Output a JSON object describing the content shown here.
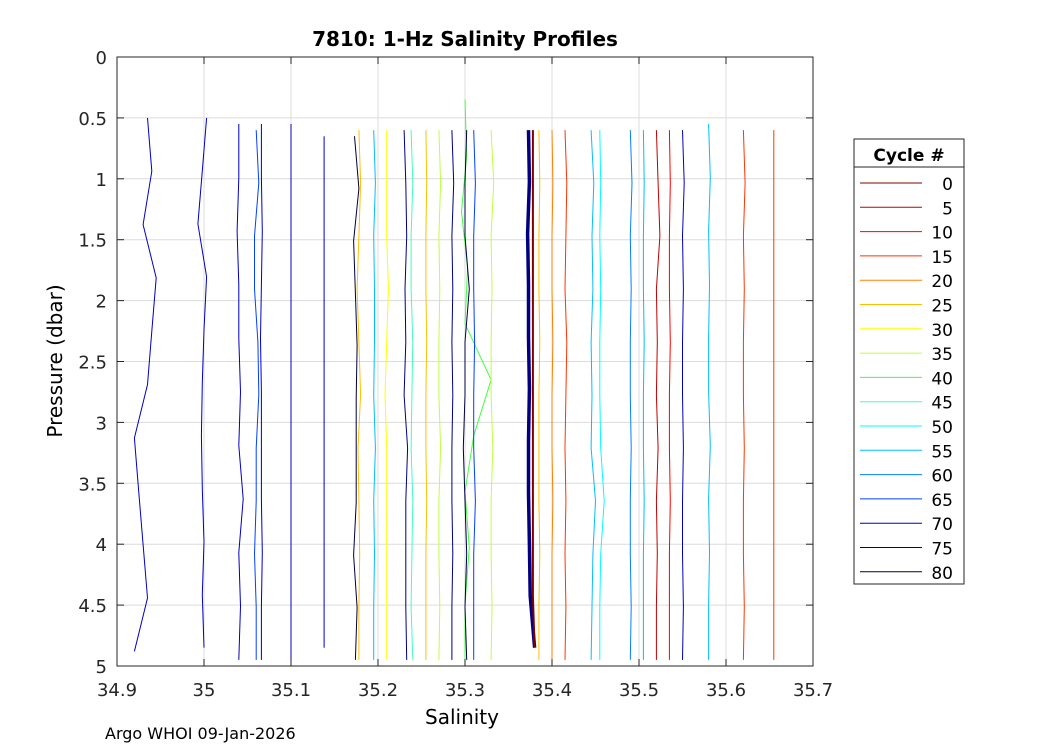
{
  "chart_data": {
    "type": "line",
    "title": "7810: 1-Hz Salinity Profiles",
    "xlabel": "Salinity",
    "ylabel": "Pressure (dbar)",
    "xlim": [
      34.9,
      35.7
    ],
    "ylim": [
      0,
      5
    ],
    "y_reversed": true,
    "grid": true,
    "x_ticks": [
      "34.9",
      "35",
      "35.1",
      "35.2",
      "35.3",
      "35.4",
      "35.5",
      "35.6",
      "35.7"
    ],
    "y_ticks": [
      "0",
      "0.5",
      "1",
      "1.5",
      "2",
      "2.5",
      "3",
      "3.5",
      "4",
      "4.5",
      "5"
    ],
    "legend_title": "Cycle #",
    "legend_position": "right-outside",
    "legend": [
      {
        "label": "0",
        "color": "#800000"
      },
      {
        "label": "5",
        "color": "#c00000"
      },
      {
        "label": "10",
        "color": "#ff0000"
      },
      {
        "label": "15",
        "color": "#ff3300"
      },
      {
        "label": "20",
        "color": "#ff8000"
      },
      {
        "label": "25",
        "color": "#ffbf00"
      },
      {
        "label": "30",
        "color": "#ffff00"
      },
      {
        "label": "35",
        "color": "#bfff40"
      },
      {
        "label": "40",
        "color": "#40ff40"
      },
      {
        "label": "45",
        "color": "#40ffbf"
      },
      {
        "label": "50",
        "color": "#00ffff"
      },
      {
        "label": "55",
        "color": "#00bfff"
      },
      {
        "label": "60",
        "color": "#0080ff"
      },
      {
        "label": "65",
        "color": "#0040ff"
      },
      {
        "label": "70",
        "color": "#0000c0"
      },
      {
        "label": "75",
        "color": "#000080"
      },
      {
        "label": "80",
        "color": "#000040"
      }
    ],
    "series": [
      {
        "name": "p01",
        "color": "#0000c0",
        "p_range": [
          0.5,
          4.88
        ],
        "s": [
          34.935,
          34.94,
          34.93,
          34.945,
          34.94,
          34.935,
          34.92,
          34.925,
          34.93,
          34.935,
          34.92
        ]
      },
      {
        "name": "p02",
        "color": "#0000c0",
        "p_range": [
          0.5,
          4.85
        ],
        "s": [
          35.003,
          34.998,
          34.993,
          35.003,
          35.0,
          34.998,
          34.997,
          34.998,
          35.0,
          34.998,
          35.0
        ]
      },
      {
        "name": "p03",
        "color": "#0000c0",
        "p_range": [
          0.55,
          4.95
        ],
        "s": [
          35.04,
          35.04,
          35.038,
          35.04,
          35.04,
          35.042,
          35.04,
          35.045,
          35.04,
          35.042,
          35.04
        ]
      },
      {
        "name": "p04",
        "color": "#0040ff",
        "p_range": [
          0.6,
          4.95
        ],
        "s": [
          35.06,
          35.063,
          35.058,
          35.058,
          35.062,
          35.063,
          35.06,
          35.06,
          35.058,
          35.06,
          35.06
        ]
      },
      {
        "name": "p05",
        "color": "#0000c0",
        "p_range": [
          0.55,
          4.95
        ],
        "s": [
          35.066,
          35.066,
          35.067,
          35.066,
          35.065,
          35.066,
          35.066,
          35.066,
          35.067,
          35.066,
          35.066
        ]
      },
      {
        "name": "p06",
        "color": "#0000c0",
        "p_range": [
          0.55,
          4.95
        ],
        "s": [
          35.1,
          35.1,
          35.1,
          35.1,
          35.1,
          35.1,
          35.1,
          35.1,
          35.1,
          35.1,
          35.1
        ]
      },
      {
        "name": "p07",
        "color": "#0000c0",
        "p_range": [
          0.65,
          4.85
        ],
        "s": [
          35.138,
          35.138,
          35.138,
          35.138,
          35.138,
          35.138,
          35.138,
          35.138,
          35.138,
          35.138,
          35.138
        ]
      },
      {
        "name": "p08",
        "color": "#000040",
        "p_range": [
          0.65,
          4.95
        ],
        "s": [
          35.173,
          35.178,
          35.172,
          35.174,
          35.176,
          35.175,
          35.175,
          35.175,
          35.172,
          35.176,
          35.174
        ]
      },
      {
        "name": "p09",
        "color": "#ffbf00",
        "p_range": [
          0.6,
          4.95
        ],
        "s": [
          35.178,
          35.18,
          35.178,
          35.176,
          35.178,
          35.18,
          35.177,
          35.178,
          35.179,
          35.178,
          35.178
        ]
      },
      {
        "name": "p10",
        "color": "#00bfff",
        "p_range": [
          0.6,
          4.95
        ],
        "s": [
          35.195,
          35.197,
          35.195,
          35.196,
          35.196,
          35.195,
          35.197,
          35.195,
          35.196,
          35.195,
          35.195
        ]
      },
      {
        "name": "p11",
        "color": "#ffff00",
        "p_range": [
          0.6,
          4.95
        ],
        "s": [
          35.21,
          35.21,
          35.21,
          35.212,
          35.21,
          35.208,
          35.21,
          35.21,
          35.21,
          35.21,
          35.21
        ]
      },
      {
        "name": "p12",
        "color": "#000080",
        "p_range": [
          0.6,
          4.95
        ],
        "s": [
          35.23,
          35.232,
          35.233,
          35.231,
          35.232,
          35.23,
          35.234,
          35.232,
          35.232,
          35.232,
          35.233
        ]
      },
      {
        "name": "p13",
        "color": "#40ffbf",
        "p_range": [
          0.6,
          4.95
        ],
        "s": [
          35.238,
          35.24,
          35.238,
          35.238,
          35.24,
          35.239,
          35.238,
          35.24,
          35.239,
          35.238,
          35.24
        ]
      },
      {
        "name": "p14",
        "color": "#ffbf00",
        "p_range": [
          0.6,
          4.95
        ],
        "s": [
          35.255,
          35.256,
          35.255,
          35.255,
          35.256,
          35.255,
          35.255,
          35.256,
          35.255,
          35.255,
          35.255
        ]
      },
      {
        "name": "p15",
        "color": "#bfff40",
        "p_range": [
          0.6,
          4.95
        ],
        "s": [
          35.27,
          35.272,
          35.27,
          35.271,
          35.27,
          35.27,
          35.272,
          35.27,
          35.27,
          35.271,
          35.27
        ]
      },
      {
        "name": "p16",
        "color": "#000080",
        "p_range": [
          0.6,
          4.95
        ],
        "s": [
          35.285,
          35.287,
          35.285,
          35.286,
          35.285,
          35.286,
          35.285,
          35.285,
          35.286,
          35.285,
          35.285
        ]
      },
      {
        "name": "p17",
        "color": "#40ff40",
        "p_range": [
          0.35,
          4.95
        ],
        "s": [
          35.3,
          35.302,
          35.296,
          35.303,
          35.3,
          35.33,
          35.31,
          35.3,
          35.305,
          35.3,
          35.3
        ]
      },
      {
        "name": "p18",
        "color": "#0040ff",
        "p_range": [
          0.6,
          4.95
        ],
        "s": [
          35.31,
          35.312,
          35.31,
          35.31,
          35.311,
          35.31,
          35.31,
          35.312,
          35.31,
          35.31,
          35.31
        ]
      },
      {
        "name": "p19",
        "color": "#000040",
        "p_range": [
          0.6,
          4.95
        ],
        "s": [
          35.302,
          35.3,
          35.3,
          35.305,
          35.3,
          35.3,
          35.298,
          35.3,
          35.302,
          35.3,
          35.302
        ]
      },
      {
        "name": "p20",
        "color": "#bfff40",
        "p_range": [
          0.6,
          4.95
        ],
        "s": [
          35.33,
          35.333,
          35.33,
          35.331,
          35.33,
          35.33,
          35.332,
          35.33,
          35.33,
          35.331,
          35.33
        ]
      },
      {
        "name": "p21",
        "color": "#000080",
        "p_range": [
          0.6,
          4.85
        ],
        "s": [
          35.373,
          35.374,
          35.372,
          35.373,
          35.373,
          35.374,
          35.373,
          35.373,
          35.374,
          35.375,
          35.38
        ],
        "width": 3.5
      },
      {
        "name": "p22",
        "color": "#800000",
        "p_range": [
          0.6,
          4.85
        ],
        "s": [
          35.378,
          35.378,
          35.378,
          35.378,
          35.378,
          35.378,
          35.378,
          35.378,
          35.378,
          35.378,
          35.38
        ],
        "width": 2
      },
      {
        "name": "p23",
        "color": "#ffbf00",
        "p_range": [
          0.6,
          4.95
        ],
        "s": [
          35.385,
          35.386,
          35.385,
          35.385,
          35.386,
          35.385,
          35.385,
          35.385,
          35.386,
          35.385,
          35.385
        ]
      },
      {
        "name": "p24",
        "color": "#ff8000",
        "p_range": [
          0.6,
          4.95
        ],
        "s": [
          35.4,
          35.401,
          35.4,
          35.4,
          35.401,
          35.4,
          35.4,
          35.401,
          35.4,
          35.4,
          35.4
        ]
      },
      {
        "name": "p25",
        "color": "#ff3300",
        "p_range": [
          0.6,
          4.95
        ],
        "s": [
          35.415,
          35.417,
          35.416,
          35.415,
          35.417,
          35.416,
          35.415,
          35.416,
          35.415,
          35.416,
          35.415
        ]
      },
      {
        "name": "p26",
        "color": "#00bfff",
        "p_range": [
          0.6,
          4.95
        ],
        "s": [
          35.445,
          35.448,
          35.446,
          35.447,
          35.445,
          35.446,
          35.445,
          35.45,
          35.447,
          35.446,
          35.445
        ]
      },
      {
        "name": "p27",
        "color": "#00ffff",
        "p_range": [
          0.6,
          4.95
        ],
        "s": [
          35.455,
          35.456,
          35.455,
          35.456,
          35.455,
          35.455,
          35.456,
          35.46,
          35.456,
          35.455,
          35.455
        ]
      },
      {
        "name": "p28",
        "color": "#0080ff",
        "p_range": [
          0.6,
          4.95
        ],
        "s": [
          35.49,
          35.492,
          35.49,
          35.491,
          35.49,
          35.49,
          35.491,
          35.49,
          35.49,
          35.491,
          35.49
        ]
      },
      {
        "name": "p29",
        "color": "#00bfff",
        "p_range": [
          0.6,
          4.95
        ],
        "s": [
          35.505,
          35.506,
          35.505,
          35.505,
          35.506,
          35.505,
          35.505,
          35.506,
          35.505,
          35.505,
          35.505
        ]
      },
      {
        "name": "p30",
        "color": "#c00000",
        "p_range": [
          0.6,
          4.95
        ],
        "s": [
          35.52,
          35.522,
          35.524,
          35.52,
          35.521,
          35.52,
          35.522,
          35.52,
          35.521,
          35.52,
          35.52
        ]
      },
      {
        "name": "p31",
        "color": "#ff0000",
        "p_range": [
          0.6,
          4.95
        ],
        "s": [
          35.535,
          35.536,
          35.535,
          35.535,
          35.536,
          35.535,
          35.535,
          35.536,
          35.535,
          35.535,
          35.535
        ]
      },
      {
        "name": "p32",
        "color": "#0000c0",
        "p_range": [
          0.6,
          4.95
        ],
        "s": [
          35.55,
          35.552,
          35.55,
          35.551,
          35.55,
          35.55,
          35.551,
          35.55,
          35.55,
          35.551,
          35.55
        ]
      },
      {
        "name": "p33",
        "color": "#00bfff",
        "p_range": [
          0.55,
          4.95
        ],
        "s": [
          35.58,
          35.582,
          35.58,
          35.581,
          35.58,
          35.58,
          35.582,
          35.58,
          35.581,
          35.58,
          35.58
        ]
      },
      {
        "name": "p34",
        "color": "#ff3300",
        "p_range": [
          0.6,
          4.95
        ],
        "s": [
          35.62,
          35.622,
          35.62,
          35.621,
          35.62,
          35.62,
          35.621,
          35.62,
          35.62,
          35.621,
          35.62
        ]
      },
      {
        "name": "p35",
        "color": "#ff3300",
        "p_range": [
          0.6,
          4.95
        ],
        "s": [
          35.655,
          35.655,
          35.655,
          35.655,
          35.655,
          35.655,
          35.655,
          35.655,
          35.655,
          35.655,
          35.655
        ]
      }
    ]
  },
  "footer": {
    "text": "Argo WHOI 09-Jan-2026"
  }
}
